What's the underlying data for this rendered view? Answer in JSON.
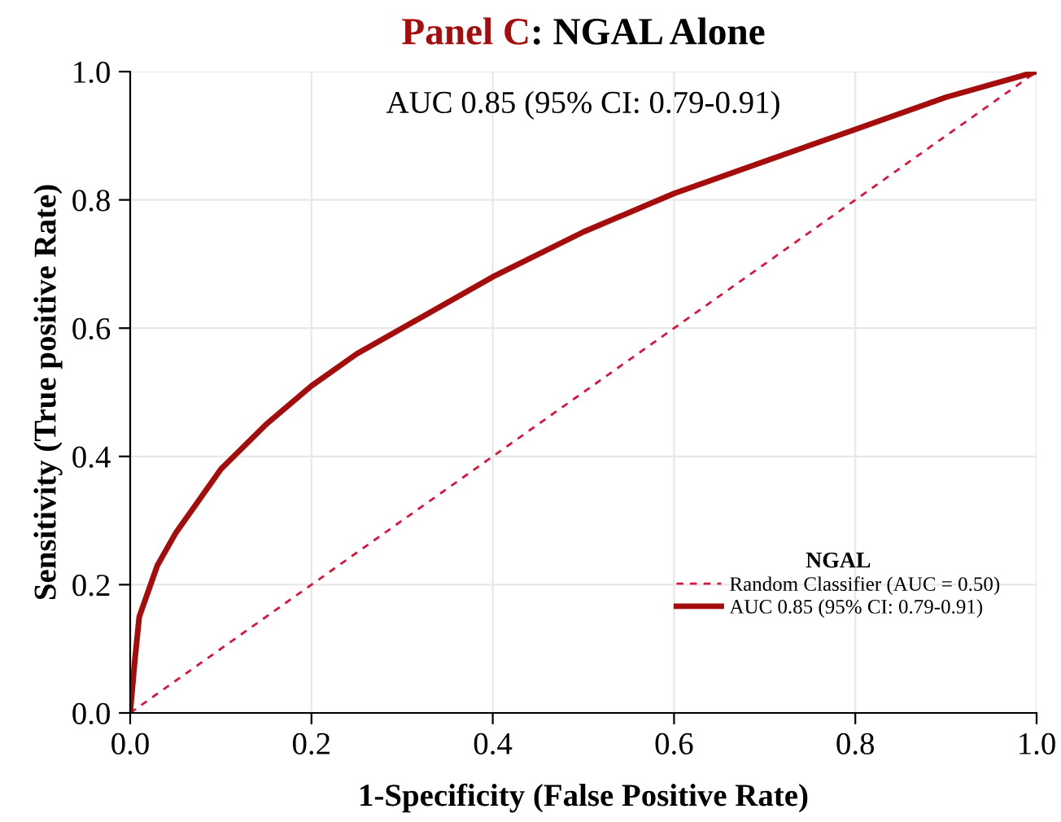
{
  "chart_data": {
    "type": "line",
    "title": "Panel C: NGAL Alone",
    "xlabel": "1-Specificity (False Positive Rate)",
    "ylabel": "Sensitivity (True positive Rate)",
    "legend_title": "NGAL",
    "annotations": [
      "AUC 0.85 (95% CI: 0.79-0.91)"
    ],
    "series": [
      {
        "name": "Random Classifier (AUC = 0.50)",
        "color": "#dc143c",
        "line_style": "dashed",
        "x": [
          0,
          1
        ],
        "values": [
          0,
          1
        ]
      },
      {
        "name": "AUC 0.85 (95% CI: 0.79-0.91)",
        "color": "#a50d0d",
        "line_style": "solid",
        "x": [
          0,
          0.005,
          0.01,
          0.02,
          0.03,
          0.05,
          0.075,
          0.1,
          0.15,
          0.2,
          0.25,
          0.3,
          0.4,
          0.5,
          0.6,
          0.7,
          0.8,
          0.9,
          1.0
        ],
        "values": [
          0,
          0.08,
          0.15,
          0.19,
          0.23,
          0.28,
          0.33,
          0.38,
          0.45,
          0.51,
          0.56,
          0.6,
          0.68,
          0.75,
          0.81,
          0.86,
          0.91,
          0.96,
          1.0
        ]
      }
    ],
    "xlim": [
      0,
      1
    ],
    "ylim": [
      0,
      1
    ],
    "xticks": [
      {
        "value": 0,
        "label": "0.0"
      },
      0.2,
      0.4,
      0.6,
      0.8,
      {
        "value": 1,
        "label": "1.0"
      }
    ],
    "yticks": [
      {
        "value": 0,
        "label": "0.0"
      },
      0.2,
      0.4,
      0.6,
      0.8,
      {
        "value": 1,
        "label": "1.0"
      }
    ],
    "grid": true,
    "legend": "lower right",
    "marker": "none"
  }
}
